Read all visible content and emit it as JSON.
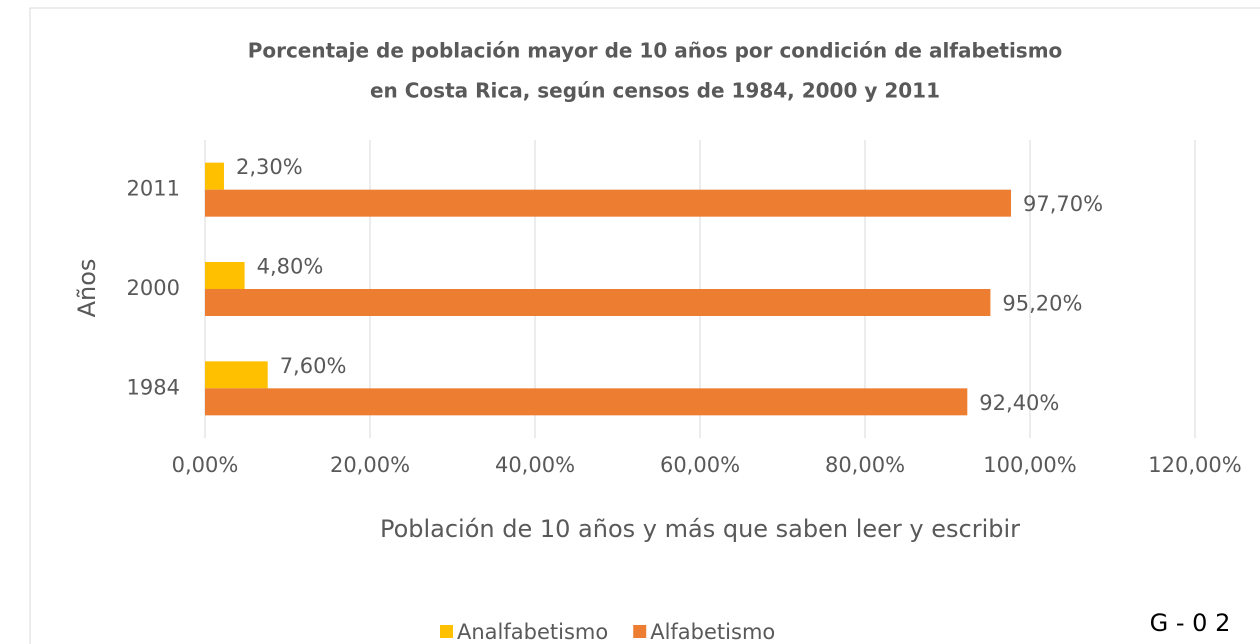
{
  "chart_data": {
    "type": "hbar",
    "title": "Porcentaje de población mayor de 10 años por condición de alfabetismo",
    "subtitle": "en Costa Rica, según censos de 1984, 2000 y 2011",
    "x_label": "Población de 10 años y más que saben leer y escribir",
    "y_label": "Años",
    "categories": [
      "1984",
      "2000",
      "2011"
    ],
    "series": [
      {
        "name": "Analfabetismo",
        "color": "#ffc000",
        "values": [
          7.6,
          4.8,
          2.3
        ],
        "value_labels": [
          "7,60%",
          "4,80%",
          "2,30%"
        ]
      },
      {
        "name": "Alfabetismo",
        "color": "#ed7d31",
        "values": [
          92.4,
          95.2,
          97.7
        ],
        "value_labels": [
          "92,40%",
          "95,20%",
          "97,70%"
        ]
      }
    ],
    "xlim": [
      0,
      120
    ],
    "xticks": [
      {
        "value": 0,
        "label": "0,00%"
      },
      {
        "value": 20,
        "label": "20,00%"
      },
      {
        "value": 40,
        "label": "40,00%"
      },
      {
        "value": 60,
        "label": "60,00%"
      },
      {
        "value": 80,
        "label": "80,00%"
      },
      {
        "value": 100,
        "label": "100,00%"
      },
      {
        "value": 120,
        "label": "120,00%"
      }
    ],
    "grid": true,
    "legend": "bottom",
    "annotation": "G - 0 2"
  }
}
